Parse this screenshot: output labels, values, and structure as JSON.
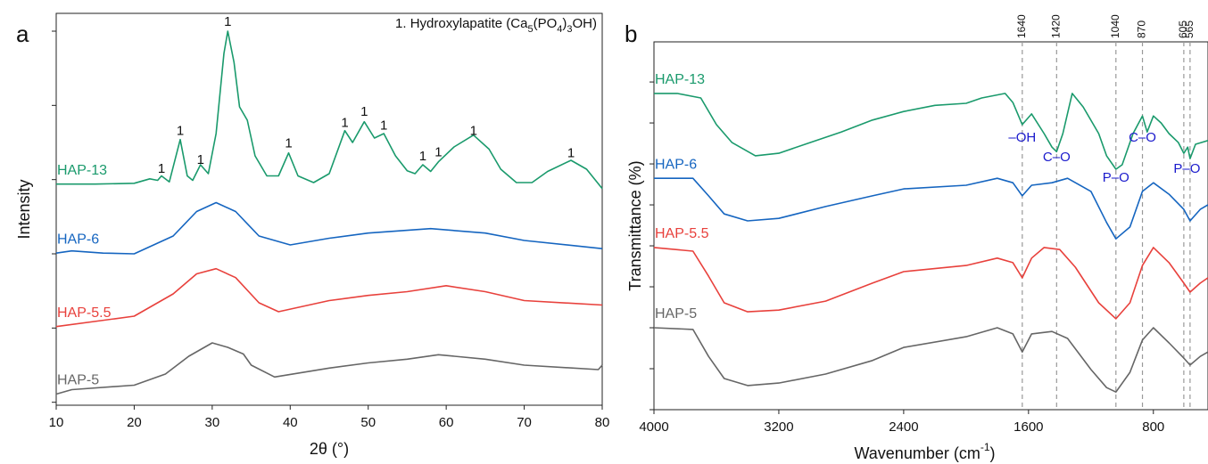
{
  "chart_data": [
    {
      "type": "line",
      "panel_label": "a",
      "xlabel": "2θ (°)",
      "ylabel": "Intensity",
      "note_parts": [
        "1. Hydroxylapatite (Ca",
        "5",
        "(PO",
        "4",
        ")",
        "3",
        "OH)"
      ],
      "xlim": [
        10,
        80
      ],
      "xticks": [
        10,
        20,
        30,
        40,
        50,
        60,
        70,
        80
      ],
      "ylim": [
        -0.04,
        5.24
      ],
      "yticks": [
        0,
        1,
        2,
        3,
        4,
        5
      ],
      "series": [
        {
          "name": "HAP-13",
          "color": "#1a9a6c",
          "x": [
            10,
            15,
            20,
            22,
            23,
            23.5,
            24.5,
            25.9,
            26.8,
            27.5,
            28.5,
            29.5,
            30.5,
            31.5,
            32,
            32.8,
            33.5,
            34.5,
            35.5,
            37,
            38.5,
            39.8,
            41,
            43,
            45,
            47,
            48,
            49.5,
            50.8,
            52,
            53.5,
            55,
            56,
            57,
            58,
            59,
            61,
            63.5,
            65.5,
            67,
            69,
            71,
            73,
            76,
            78,
            80
          ],
          "values": [
            2.94,
            2.94,
            2.95,
            3.01,
            2.99,
            3.05,
            2.97,
            3.54,
            3.05,
            2.99,
            3.2,
            3.08,
            3.62,
            4.7,
            5.0,
            4.58,
            3.98,
            3.8,
            3.32,
            3.05,
            3.05,
            3.36,
            3.05,
            2.96,
            3.08,
            3.66,
            3.5,
            3.78,
            3.56,
            3.62,
            3.32,
            3.12,
            3.08,
            3.2,
            3.11,
            3.24,
            3.44,
            3.6,
            3.41,
            3.14,
            2.96,
            2.96,
            3.11,
            3.26,
            3.14,
            2.88
          ]
        },
        {
          "name": "HAP-6",
          "color": "#1565c0",
          "x": [
            10,
            12,
            16,
            20,
            25,
            28,
            30.5,
            33,
            36,
            40,
            45,
            50,
            58,
            65,
            70,
            80
          ],
          "values": [
            2.01,
            2.04,
            2.01,
            2.0,
            2.24,
            2.57,
            2.69,
            2.57,
            2.24,
            2.12,
            2.21,
            2.28,
            2.34,
            2.28,
            2.18,
            2.07
          ]
        },
        {
          "name": "HAP-5.5",
          "color": "#e8413c",
          "x": [
            10,
            20,
            25,
            28,
            30.5,
            33,
            36,
            38.5,
            45,
            50,
            55,
            60,
            65,
            70,
            80
          ],
          "values": [
            1.02,
            1.16,
            1.46,
            1.73,
            1.8,
            1.68,
            1.34,
            1.22,
            1.37,
            1.44,
            1.49,
            1.57,
            1.49,
            1.37,
            1.31
          ]
        },
        {
          "name": "HAP-5",
          "color": "#666666",
          "x": [
            10,
            12,
            20,
            24,
            27,
            30,
            32,
            34,
            35,
            38,
            45,
            50,
            55,
            59,
            65,
            70,
            79.5,
            80
          ],
          "values": [
            0.11,
            0.17,
            0.23,
            0.38,
            0.62,
            0.8,
            0.74,
            0.65,
            0.5,
            0.34,
            0.46,
            0.53,
            0.58,
            0.64,
            0.58,
            0.5,
            0.44,
            0.5
          ]
        }
      ],
      "annotations": [
        {
          "x": 23.5,
          "y": 3.14,
          "text": "1"
        },
        {
          "x": 25.9,
          "y": 3.65,
          "text": "1"
        },
        {
          "x": 28.5,
          "y": 3.26,
          "text": "1"
        },
        {
          "x": 32,
          "y": 5.12,
          "text": "1"
        },
        {
          "x": 39.8,
          "y": 3.48,
          "text": "1"
        },
        {
          "x": 47,
          "y": 3.76,
          "text": "1"
        },
        {
          "x": 49.5,
          "y": 3.91,
          "text": "1"
        },
        {
          "x": 52,
          "y": 3.72,
          "text": "1"
        },
        {
          "x": 57,
          "y": 3.31,
          "text": "1"
        },
        {
          "x": 59,
          "y": 3.36,
          "text": "1"
        },
        {
          "x": 63.5,
          "y": 3.65,
          "text": "1"
        },
        {
          "x": 76,
          "y": 3.35,
          "text": "1"
        }
      ]
    },
    {
      "type": "line",
      "panel_label": "b",
      "xlabel_parts": [
        "Wavenumber (cm",
        "-1",
        ")"
      ],
      "ylabel": "Transmittance (%)",
      "xlim": [
        4000,
        450
      ],
      "xticks": [
        4000,
        3200,
        2400,
        1600,
        800
      ],
      "ylim": [
        0,
        8.98
      ],
      "yticks": [
        0,
        1,
        2,
        3,
        4,
        5,
        6,
        7,
        8
      ],
      "reference_lines": [
        1640,
        1420,
        1040,
        870,
        605,
        565
      ],
      "annotation_color": "#1a1acc",
      "series": [
        {
          "name": "HAP-13",
          "color": "#1a9a6c",
          "x": [
            4000,
            3850,
            3700,
            3600,
            3500,
            3350,
            3200,
            3000,
            2800,
            2600,
            2400,
            2200,
            2000,
            1900,
            1750,
            1700,
            1640,
            1580,
            1500,
            1450,
            1420,
            1380,
            1320,
            1250,
            1150,
            1100,
            1040,
            1000,
            930,
            870,
            840,
            800,
            750,
            700,
            640,
            605,
            580,
            565,
            530,
            450
          ],
          "values": [
            7.72,
            7.72,
            7.61,
            6.96,
            6.52,
            6.2,
            6.26,
            6.52,
            6.78,
            7.07,
            7.28,
            7.43,
            7.48,
            7.61,
            7.72,
            7.5,
            6.96,
            7.22,
            6.74,
            6.41,
            6.3,
            6.74,
            7.72,
            7.39,
            6.74,
            6.2,
            5.87,
            5.98,
            6.74,
            7.17,
            6.78,
            7.17,
            7.0,
            6.74,
            6.52,
            6.26,
            6.41,
            6.13,
            6.48,
            6.57
          ]
        },
        {
          "name": "HAP-6",
          "color": "#1565c0",
          "x": [
            4000,
            3750,
            3650,
            3550,
            3400,
            3200,
            2900,
            2600,
            2400,
            2000,
            1800,
            1700,
            1640,
            1580,
            1450,
            1350,
            1200,
            1100,
            1040,
            950,
            870,
            800,
            700,
            605,
            565,
            500,
            450
          ],
          "values": [
            5.65,
            5.65,
            5.22,
            4.78,
            4.61,
            4.67,
            4.96,
            5.22,
            5.39,
            5.48,
            5.65,
            5.54,
            5.22,
            5.48,
            5.54,
            5.65,
            5.33,
            4.57,
            4.17,
            4.46,
            5.33,
            5.54,
            5.26,
            4.89,
            4.61,
            4.89,
            5.0
          ]
        },
        {
          "name": "HAP-5.5",
          "color": "#e8413c",
          "x": [
            4000,
            3750,
            3650,
            3550,
            3400,
            3200,
            2900,
            2600,
            2400,
            2000,
            1800,
            1700,
            1640,
            1580,
            1500,
            1400,
            1300,
            1150,
            1040,
            950,
            870,
            800,
            700,
            605,
            565,
            500,
            450
          ],
          "values": [
            3.96,
            3.87,
            3.26,
            2.61,
            2.39,
            2.43,
            2.65,
            3.09,
            3.37,
            3.52,
            3.7,
            3.59,
            3.22,
            3.7,
            3.96,
            3.91,
            3.48,
            2.61,
            2.22,
            2.61,
            3.52,
            3.96,
            3.59,
            3.09,
            2.87,
            3.09,
            3.22
          ]
        },
        {
          "name": "HAP-5",
          "color": "#666666",
          "x": [
            4000,
            3750,
            3650,
            3550,
            3400,
            3200,
            2900,
            2600,
            2400,
            2000,
            1800,
            1700,
            1640,
            1580,
            1450,
            1350,
            1200,
            1100,
            1040,
            950,
            870,
            800,
            700,
            605,
            565,
            500,
            450
          ],
          "values": [
            2.0,
            1.96,
            1.3,
            0.76,
            0.59,
            0.65,
            0.87,
            1.2,
            1.52,
            1.78,
            2.0,
            1.85,
            1.41,
            1.85,
            1.91,
            1.74,
            0.98,
            0.54,
            0.43,
            0.91,
            1.7,
            2.0,
            1.63,
            1.26,
            1.09,
            1.3,
            1.41
          ]
        }
      ],
      "annotations": [
        {
          "x": 1640,
          "y": 6.63,
          "text": "–OH"
        },
        {
          "x": 1420,
          "y": 6.15,
          "text": "C–O"
        },
        {
          "x": 1040,
          "y": 5.65,
          "text": "P–O"
        },
        {
          "x": 870,
          "y": 6.63,
          "text": "C–O"
        },
        {
          "x": 585,
          "y": 5.87,
          "text": "P–O"
        }
      ]
    }
  ]
}
